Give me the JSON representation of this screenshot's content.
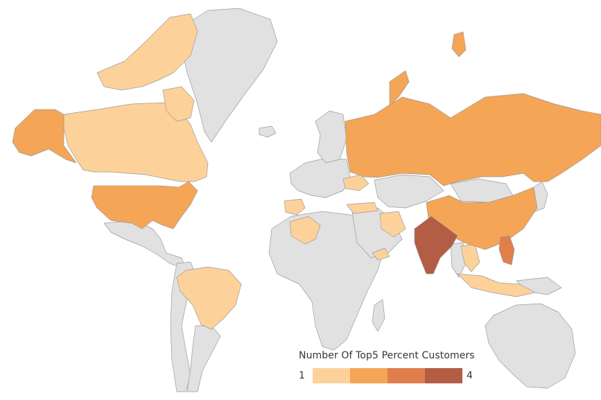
{
  "legend": {
    "title": "Number Of Top5 Percent Customers",
    "min_label": "1",
    "max_label": "4",
    "scale": [
      {
        "value": 1,
        "color": "#fdd19a"
      },
      {
        "value": 2,
        "color": "#f4a556"
      },
      {
        "value": 3,
        "color": "#e07f4c"
      },
      {
        "value": 4,
        "color": "#b35d45"
      }
    ]
  },
  "colors": {
    "no_data": "#e1e1e1",
    "border": "#9a9a9a",
    "background": "#ffffff"
  },
  "regions": [
    {
      "name": "Canada",
      "value": 1
    },
    {
      "name": "United States",
      "value": 2
    },
    {
      "name": "Alaska",
      "value": 2
    },
    {
      "name": "Mexico",
      "value": null
    },
    {
      "name": "Brazil",
      "value": 1
    },
    {
      "name": "Spain",
      "value": 1
    },
    {
      "name": "Algeria",
      "value": 1
    },
    {
      "name": "Turkey",
      "value": 1
    },
    {
      "name": "Ukraine",
      "value": 1
    },
    {
      "name": "Iran",
      "value": 1
    },
    {
      "name": "Yemen",
      "value": 1
    },
    {
      "name": "Russia",
      "value": 2
    },
    {
      "name": "China",
      "value": 2
    },
    {
      "name": "India",
      "value": 4
    },
    {
      "name": "Philippines",
      "value": 3
    },
    {
      "name": "Thailand",
      "value": 1
    },
    {
      "name": "Indonesia",
      "value": 1
    },
    {
      "name": "Greenland",
      "value": null
    },
    {
      "name": "Australia",
      "value": null
    }
  ]
}
